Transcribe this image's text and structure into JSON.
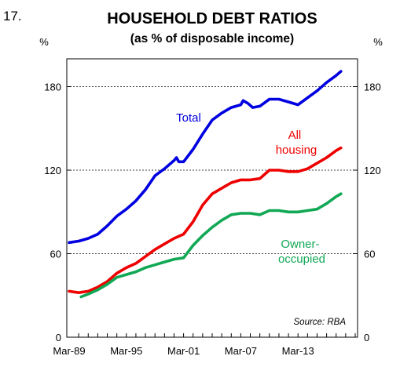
{
  "page": {
    "number": "17."
  },
  "chart_data": {
    "type": "line",
    "title": "HOUSEHOLD DEBT RATIOS",
    "subtitle": "(as % of disposable income)",
    "ylabel_left": "%",
    "ylabel_right": "%",
    "ylim": [
      0,
      200
    ],
    "yticks": [
      0,
      60,
      120,
      180
    ],
    "x_range": [
      "1989-03",
      "2019-03"
    ],
    "xticks": [
      "Mar-89",
      "Mar-95",
      "Mar-01",
      "Mar-07",
      "Mar-13"
    ],
    "grid": "horizontal dotted at 60, 120, 180",
    "source": "Source: RBA",
    "series": [
      {
        "name": "Total",
        "color": "#0000e0",
        "points": [
          [
            "1989-03",
            68
          ],
          [
            "1990-03",
            69
          ],
          [
            "1991-03",
            71
          ],
          [
            "1992-03",
            74
          ],
          [
            "1993-03",
            80
          ],
          [
            "1994-03",
            87
          ],
          [
            "1995-03",
            92
          ],
          [
            "1996-03",
            98
          ],
          [
            "1997-03",
            106
          ],
          [
            "1998-03",
            116
          ],
          [
            "1999-03",
            121
          ],
          [
            "2000-03",
            127
          ],
          [
            "2000-06",
            129
          ],
          [
            "2000-09",
            126
          ],
          [
            "2001-03",
            126
          ],
          [
            "2002-03",
            135
          ],
          [
            "2003-03",
            146
          ],
          [
            "2004-03",
            156
          ],
          [
            "2005-03",
            161
          ],
          [
            "2006-03",
            165
          ],
          [
            "2007-03",
            167
          ],
          [
            "2007-06",
            170
          ],
          [
            "2007-12",
            168
          ],
          [
            "2008-06",
            165
          ],
          [
            "2009-03",
            166
          ],
          [
            "2010-03",
            171
          ],
          [
            "2011-03",
            171
          ],
          [
            "2012-03",
            169
          ],
          [
            "2013-03",
            167
          ],
          [
            "2014-03",
            172
          ],
          [
            "2015-03",
            177
          ],
          [
            "2016-03",
            183
          ],
          [
            "2017-03",
            188
          ],
          [
            "2017-09",
            191
          ]
        ]
      },
      {
        "name": "All housing",
        "label_lines": [
          "All",
          "housing"
        ],
        "color": "#ee0000",
        "points": [
          [
            "1989-03",
            33
          ],
          [
            "1990-03",
            32
          ],
          [
            "1991-03",
            33
          ],
          [
            "1992-03",
            36
          ],
          [
            "1993-03",
            40
          ],
          [
            "1994-03",
            46
          ],
          [
            "1995-03",
            50
          ],
          [
            "1996-03",
            53
          ],
          [
            "1997-03",
            58
          ],
          [
            "1998-03",
            63
          ],
          [
            "1999-03",
            67
          ],
          [
            "2000-03",
            71
          ],
          [
            "2001-03",
            74
          ],
          [
            "2002-03",
            83
          ],
          [
            "2003-03",
            95
          ],
          [
            "2004-03",
            103
          ],
          [
            "2005-03",
            107
          ],
          [
            "2006-03",
            111
          ],
          [
            "2007-03",
            113
          ],
          [
            "2008-03",
            113
          ],
          [
            "2009-03",
            114
          ],
          [
            "2010-03",
            120
          ],
          [
            "2011-03",
            120
          ],
          [
            "2012-03",
            119
          ],
          [
            "2013-03",
            119
          ],
          [
            "2014-03",
            121
          ],
          [
            "2015-03",
            125
          ],
          [
            "2016-03",
            129
          ],
          [
            "2017-03",
            134
          ],
          [
            "2017-09",
            136
          ]
        ]
      },
      {
        "name": "Owner-occupied",
        "label_lines": [
          "Owner-",
          "occupied"
        ],
        "color": "#11a855",
        "points": [
          [
            "1990-06",
            29
          ],
          [
            "1991-03",
            31
          ],
          [
            "1992-03",
            34
          ],
          [
            "1993-03",
            38
          ],
          [
            "1994-03",
            43
          ],
          [
            "1995-03",
            45
          ],
          [
            "1996-03",
            47
          ],
          [
            "1997-03",
            50
          ],
          [
            "1998-03",
            52
          ],
          [
            "1999-03",
            54
          ],
          [
            "2000-03",
            56
          ],
          [
            "2001-03",
            57
          ],
          [
            "2002-03",
            66
          ],
          [
            "2003-03",
            73
          ],
          [
            "2004-03",
            79
          ],
          [
            "2005-03",
            84
          ],
          [
            "2006-03",
            88
          ],
          [
            "2007-03",
            89
          ],
          [
            "2008-03",
            89
          ],
          [
            "2009-03",
            88
          ],
          [
            "2010-03",
            91
          ],
          [
            "2011-03",
            91
          ],
          [
            "2012-03",
            90
          ],
          [
            "2013-03",
            90
          ],
          [
            "2014-03",
            91
          ],
          [
            "2015-03",
            92
          ],
          [
            "2016-03",
            96
          ],
          [
            "2017-03",
            101
          ],
          [
            "2017-09",
            103
          ]
        ]
      }
    ]
  }
}
